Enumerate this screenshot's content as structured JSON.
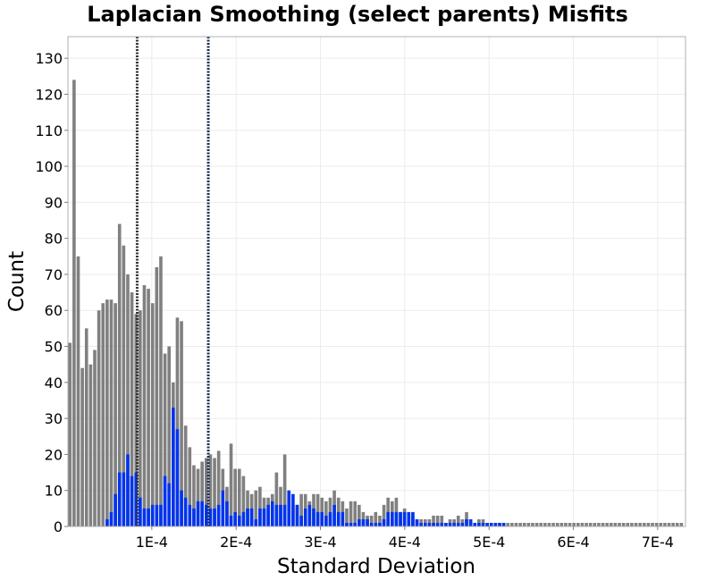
{
  "chart_data": {
    "type": "bar",
    "title": "Laplacian Smoothing (select parents) Misfits",
    "xlabel": "Standard Deviation",
    "ylabel": "Count",
    "xlim": [
      5e-07,
      0.000733
    ],
    "ylim": [
      0,
      136
    ],
    "bin_width": 4.9e-06,
    "grid": true,
    "x_ticks": [
      {
        "value": 0.0001,
        "label": "1E-4"
      },
      {
        "value": 0.0002,
        "label": "2E-4"
      },
      {
        "value": 0.0003,
        "label": "3E-4"
      },
      {
        "value": 0.0004,
        "label": "4E-4"
      },
      {
        "value": 0.0005,
        "label": "5E-4"
      },
      {
        "value": 0.0006,
        "label": "6E-4"
      },
      {
        "value": 0.0007,
        "label": "7E-4"
      }
    ],
    "y_ticks": [
      {
        "value": 0,
        "label": "0"
      },
      {
        "value": 10,
        "label": "10"
      },
      {
        "value": 20,
        "label": "20"
      },
      {
        "value": 30,
        "label": "30"
      },
      {
        "value": 40,
        "label": "40"
      },
      {
        "value": 50,
        "label": "50"
      },
      {
        "value": 60,
        "label": "60"
      },
      {
        "value": 70,
        "label": "70"
      },
      {
        "value": 80,
        "label": "80"
      },
      {
        "value": 90,
        "label": "90"
      },
      {
        "value": 100,
        "label": "100"
      },
      {
        "value": 110,
        "label": "110"
      },
      {
        "value": 120,
        "label": "120"
      },
      {
        "value": 130,
        "label": "130"
      }
    ],
    "vlines": [
      {
        "x": 8.26e-05,
        "color": "#333333"
      },
      {
        "x": 0.000167,
        "color": "#1a2e50"
      }
    ],
    "series": [
      {
        "color": "#808080",
        "points": [
          [
            2.9e-06,
            51
          ],
          [
            7.8e-06,
            124
          ],
          [
            1.27e-05,
            75
          ],
          [
            1.76e-05,
            44
          ],
          [
            2.25e-05,
            55
          ],
          [
            2.74e-05,
            45
          ],
          [
            3.23e-05,
            49
          ],
          [
            3.72e-05,
            60
          ],
          [
            4.21e-05,
            62
          ],
          [
            4.7e-05,
            63
          ],
          [
            5.19e-05,
            63
          ],
          [
            5.68e-05,
            62
          ],
          [
            6.17e-05,
            84
          ],
          [
            6.66e-05,
            78
          ],
          [
            7.15e-05,
            70
          ],
          [
            7.64e-05,
            65
          ],
          [
            8.13e-05,
            59
          ],
          [
            8.62e-05,
            60
          ],
          [
            9.11e-05,
            67
          ],
          [
            9.6e-05,
            66
          ],
          [
            0.0001009,
            62
          ],
          [
            0.0001058,
            72
          ],
          [
            0.0001107,
            75
          ],
          [
            0.0001156,
            48
          ],
          [
            0.0001205,
            50
          ],
          [
            0.0001254,
            40
          ],
          [
            0.0001303,
            58
          ],
          [
            0.0001352,
            57
          ],
          [
            0.0001401,
            28
          ],
          [
            0.000145,
            22
          ],
          [
            0.0001499,
            17
          ],
          [
            0.0001548,
            16
          ],
          [
            0.0001597,
            18
          ],
          [
            0.0001646,
            19
          ],
          [
            0.0001695,
            20
          ],
          [
            0.0001744,
            19
          ],
          [
            0.0001793,
            21
          ],
          [
            0.0001842,
            16
          ],
          [
            0.0001891,
            11
          ],
          [
            0.000194,
            23
          ],
          [
            0.0001989,
            16
          ],
          [
            0.0002038,
            16
          ],
          [
            0.0002087,
            14
          ],
          [
            0.0002136,
            10
          ],
          [
            0.0002185,
            9
          ],
          [
            0.0002234,
            10
          ],
          [
            0.0002283,
            11
          ],
          [
            0.0002332,
            8
          ],
          [
            0.0002381,
            8
          ],
          [
            0.000243,
            9
          ],
          [
            0.0002479,
            15
          ],
          [
            0.0002528,
            11
          ],
          [
            0.0002577,
            20
          ],
          [
            0.0002626,
            7
          ],
          [
            0.0002675,
            6
          ],
          [
            0.0002724,
            6
          ],
          [
            0.0002773,
            9
          ],
          [
            0.0002822,
            9
          ],
          [
            0.0002871,
            7
          ],
          [
            0.000292,
            9
          ],
          [
            0.0002969,
            9
          ],
          [
            0.0003018,
            8
          ],
          [
            0.0003067,
            7
          ],
          [
            0.0003116,
            8
          ],
          [
            0.0003165,
            10
          ],
          [
            0.0003214,
            8
          ],
          [
            0.0003263,
            7
          ],
          [
            0.0003312,
            5
          ],
          [
            0.0003361,
            7
          ],
          [
            0.000341,
            7
          ],
          [
            0.0003459,
            6
          ],
          [
            0.0003508,
            4
          ],
          [
            0.0003557,
            3
          ],
          [
            0.0003606,
            3
          ],
          [
            0.0003655,
            4
          ],
          [
            0.0003704,
            3
          ],
          [
            0.0003753,
            6
          ],
          [
            0.0003802,
            8
          ],
          [
            0.0003851,
            7
          ],
          [
            0.00039,
            8
          ],
          [
            0.0003949,
            4
          ],
          [
            0.0003998,
            5
          ],
          [
            0.0004047,
            3
          ],
          [
            0.0004096,
            3
          ],
          [
            0.0004145,
            2
          ],
          [
            0.0004194,
            2
          ],
          [
            0.0004243,
            2
          ],
          [
            0.0004292,
            2
          ],
          [
            0.0004341,
            3
          ],
          [
            0.000439,
            3
          ],
          [
            0.0004439,
            3
          ],
          [
            0.0004488,
            1
          ],
          [
            0.0004537,
            2
          ],
          [
            0.0004586,
            2
          ],
          [
            0.0004635,
            3
          ],
          [
            0.0004684,
            2
          ],
          [
            0.0004733,
            4
          ],
          [
            0.0004782,
            2
          ],
          [
            0.0004831,
            1
          ],
          [
            0.000488,
            2
          ],
          [
            0.0004929,
            2
          ],
          [
            0.0004978,
            1
          ],
          [
            0.0005027,
            1
          ],
          [
            0.0005076,
            1
          ],
          [
            0.0005125,
            1
          ],
          [
            0.0005174,
            1
          ],
          [
            0.0005223,
            1
          ],
          [
            0.0005272,
            1
          ],
          [
            0.0005321,
            1
          ],
          [
            0.000537,
            1
          ],
          [
            0.0005419,
            1
          ],
          [
            0.0005468,
            1
          ],
          [
            0.0005517,
            1
          ],
          [
            0.0005566,
            1
          ],
          [
            0.0005615,
            1
          ],
          [
            0.0005664,
            1
          ],
          [
            0.0005713,
            1
          ],
          [
            0.0005762,
            1
          ],
          [
            0.0005811,
            1
          ],
          [
            0.000586,
            1
          ],
          [
            0.0005909,
            1
          ],
          [
            0.0005958,
            1
          ],
          [
            0.0006007,
            1
          ],
          [
            0.0006056,
            1
          ],
          [
            0.0006105,
            1
          ],
          [
            0.0006154,
            1
          ],
          [
            0.0006203,
            1
          ],
          [
            0.0006252,
            1
          ],
          [
            0.0006301,
            1
          ],
          [
            0.000635,
            1
          ],
          [
            0.0006399,
            1
          ],
          [
            0.0006448,
            1
          ],
          [
            0.0006497,
            1
          ],
          [
            0.0006546,
            1
          ],
          [
            0.0006595,
            1
          ],
          [
            0.0006644,
            1
          ],
          [
            0.0006693,
            1
          ],
          [
            0.0006742,
            1
          ],
          [
            0.0006791,
            1
          ],
          [
            0.000684,
            1
          ],
          [
            0.0006889,
            1
          ],
          [
            0.0006938,
            1
          ],
          [
            0.0006987,
            1
          ],
          [
            0.0007036,
            1
          ],
          [
            0.0007085,
            1
          ],
          [
            0.0007134,
            1
          ],
          [
            0.0007183,
            1
          ],
          [
            0.0007232,
            1
          ],
          [
            0.0007281,
            1
          ]
        ]
      },
      {
        "color": "#0033ee",
        "points": [
          [
            4.7e-05,
            2
          ],
          [
            5.19e-05,
            4
          ],
          [
            5.68e-05,
            9
          ],
          [
            6.17e-05,
            15
          ],
          [
            6.66e-05,
            15
          ],
          [
            7.15e-05,
            20
          ],
          [
            7.64e-05,
            14
          ],
          [
            8.13e-05,
            15
          ],
          [
            8.62e-05,
            8
          ],
          [
            9.11e-05,
            5
          ],
          [
            9.6e-05,
            5
          ],
          [
            0.0001009,
            6
          ],
          [
            0.0001058,
            6
          ],
          [
            0.0001107,
            6
          ],
          [
            0.0001156,
            14
          ],
          [
            0.0001205,
            12
          ],
          [
            0.0001254,
            33
          ],
          [
            0.0001303,
            27
          ],
          [
            0.0001352,
            10
          ],
          [
            0.0001401,
            8
          ],
          [
            0.000145,
            6
          ],
          [
            0.0001499,
            5
          ],
          [
            0.0001548,
            7
          ],
          [
            0.0001597,
            7
          ],
          [
            0.0001646,
            6
          ],
          [
            0.0001695,
            5
          ],
          [
            0.0001744,
            5
          ],
          [
            0.0001793,
            6
          ],
          [
            0.0001842,
            10
          ],
          [
            0.0001891,
            7
          ],
          [
            0.000194,
            3
          ],
          [
            0.0001989,
            4
          ],
          [
            0.0002038,
            3
          ],
          [
            0.0002087,
            4
          ],
          [
            0.0002136,
            5
          ],
          [
            0.0002185,
            5
          ],
          [
            0.0002234,
            2
          ],
          [
            0.0002283,
            5
          ],
          [
            0.0002332,
            5
          ],
          [
            0.0002381,
            6
          ],
          [
            0.000243,
            7
          ],
          [
            0.0002479,
            6
          ],
          [
            0.0002528,
            6
          ],
          [
            0.0002577,
            6
          ],
          [
            0.0002626,
            10
          ],
          [
            0.0002675,
            9
          ],
          [
            0.0002724,
            6
          ],
          [
            0.0002773,
            3
          ],
          [
            0.0002822,
            5
          ],
          [
            0.0002871,
            6
          ],
          [
            0.000292,
            5
          ],
          [
            0.0002969,
            4
          ],
          [
            0.0003018,
            4
          ],
          [
            0.0003067,
            3
          ],
          [
            0.0003116,
            4
          ],
          [
            0.0003165,
            6
          ],
          [
            0.0003214,
            4
          ],
          [
            0.0003263,
            4
          ],
          [
            0.0003312,
            1
          ],
          [
            0.0003361,
            1
          ],
          [
            0.000341,
            1
          ],
          [
            0.0003459,
            2
          ],
          [
            0.0003508,
            2
          ],
          [
            0.0003557,
            2
          ],
          [
            0.0003606,
            1
          ],
          [
            0.0003655,
            1
          ],
          [
            0.0003704,
            1
          ],
          [
            0.0003753,
            2
          ],
          [
            0.0003802,
            4
          ],
          [
            0.0003851,
            4
          ],
          [
            0.00039,
            4
          ],
          [
            0.0003949,
            4
          ],
          [
            0.0003998,
            4
          ],
          [
            0.0004047,
            4
          ],
          [
            0.0004096,
            4
          ],
          [
            0.0004145,
            2
          ],
          [
            0.0004194,
            1
          ],
          [
            0.0004243,
            1
          ],
          [
            0.0004292,
            1
          ],
          [
            0.0004341,
            1
          ],
          [
            0.000439,
            1
          ],
          [
            0.0004439,
            1
          ],
          [
            0.0004488,
            1
          ],
          [
            0.0004537,
            1
          ],
          [
            0.0004586,
            1
          ],
          [
            0.0004635,
            1
          ],
          [
            0.0004684,
            1
          ],
          [
            0.0004733,
            2
          ],
          [
            0.0004782,
            2
          ],
          [
            0.0004831,
            1
          ],
          [
            0.000488,
            1
          ],
          [
            0.0004929,
            1
          ],
          [
            0.0004978,
            1
          ],
          [
            0.0005027,
            1
          ],
          [
            0.0005076,
            1
          ],
          [
            0.0005125,
            1
          ],
          [
            0.0005174,
            1
          ]
        ]
      }
    ]
  }
}
